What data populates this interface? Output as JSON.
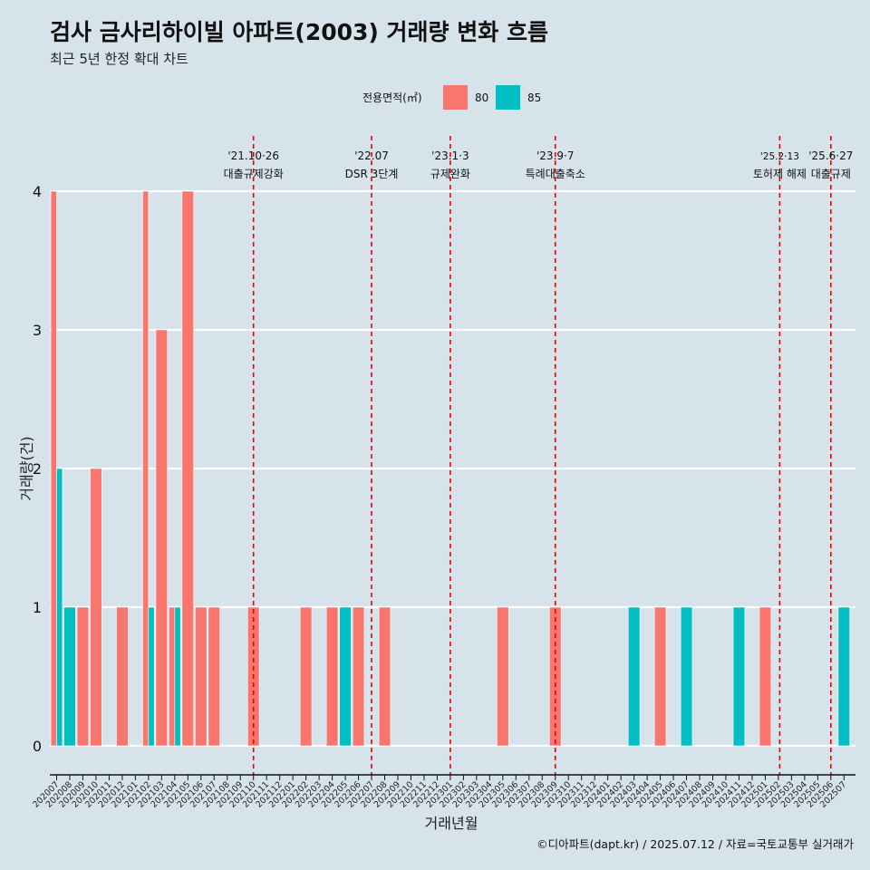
{
  "title": "검사 금사리하이빌 아파트(2003) 거래량 변화 흐름",
  "subtitle": "최근 5년 한정 확대 차트",
  "caption": "©디아파트(dapt.kr) / 2025.07.12 / 자료=국토교통부 실거래가",
  "legend": {
    "title": "전용면적(㎡)",
    "items": [
      {
        "label": "80",
        "color": "#F8766D"
      },
      {
        "label": "85",
        "color": "#00BFC4"
      }
    ]
  },
  "chart_data": {
    "type": "bar",
    "xlabel": "거래년월",
    "ylabel": "거래량(건)",
    "ylim": [
      0,
      4
    ],
    "yticks": [
      0,
      1,
      2,
      3,
      4
    ],
    "categories": [
      "202007",
      "202008",
      "202009",
      "202010",
      "202011",
      "202012",
      "202101",
      "202102",
      "202103",
      "202104",
      "202105",
      "202106",
      "202107",
      "202108",
      "202109",
      "202110",
      "202111",
      "202112",
      "202201",
      "202202",
      "202203",
      "202204",
      "202205",
      "202206",
      "202207",
      "202208",
      "202209",
      "202210",
      "202211",
      "202212",
      "202301",
      "202302",
      "202303",
      "202304",
      "202305",
      "202306",
      "202307",
      "202308",
      "202309",
      "202310",
      "202311",
      "202312",
      "202401",
      "202402",
      "202403",
      "202404",
      "202405",
      "202406",
      "202407",
      "202408",
      "202409",
      "202410",
      "202411",
      "202412",
      "202501",
      "202502",
      "202503",
      "202504",
      "202505",
      "202506",
      "202507"
    ],
    "series": [
      {
        "name": "80",
        "color": "#F8766D",
        "values": [
          {
            "x": "202007",
            "y": 4
          },
          {
            "x": "202009",
            "y": 1
          },
          {
            "x": "202010",
            "y": 2
          },
          {
            "x": "202012",
            "y": 1
          },
          {
            "x": "202102",
            "y": 4
          },
          {
            "x": "202103",
            "y": 3
          },
          {
            "x": "202104",
            "y": 1
          },
          {
            "x": "202105",
            "y": 4
          },
          {
            "x": "202106",
            "y": 1
          },
          {
            "x": "202107",
            "y": 1
          },
          {
            "x": "202110",
            "y": 1
          },
          {
            "x": "202202",
            "y": 1
          },
          {
            "x": "202204",
            "y": 1
          },
          {
            "x": "202206",
            "y": 1
          },
          {
            "x": "202208",
            "y": 1
          },
          {
            "x": "202305",
            "y": 1
          },
          {
            "x": "202309",
            "y": 1
          },
          {
            "x": "202405",
            "y": 1
          },
          {
            "x": "202501",
            "y": 1
          }
        ]
      },
      {
        "name": "85",
        "color": "#00BFC4",
        "values": [
          {
            "x": "202007",
            "y": 2
          },
          {
            "x": "202008",
            "y": 1
          },
          {
            "x": "202102",
            "y": 1
          },
          {
            "x": "202104",
            "y": 1
          },
          {
            "x": "202205",
            "y": 1
          },
          {
            "x": "202403",
            "y": 1
          },
          {
            "x": "202407",
            "y": 1
          },
          {
            "x": "202411",
            "y": 1
          },
          {
            "x": "202507",
            "y": 1
          }
        ]
      }
    ],
    "annotations": [
      {
        "x": "202110",
        "date": "'21.10·26",
        "label": "대출규제강화"
      },
      {
        "x": "202207",
        "date": "'22.07",
        "label": "DSR 3단계"
      },
      {
        "x": "202301",
        "date": "'23.1·3",
        "label": "규제완화"
      },
      {
        "x": "202309",
        "date": "'23.9·7",
        "label": "특례대출축소"
      },
      {
        "x": "202502",
        "date": "'25.2·13",
        "label": "토허제 해제"
      },
      {
        "x": "202506",
        "date": "'25.6·27",
        "label": "대출규제"
      }
    ],
    "grid": true,
    "legend_position": "top"
  }
}
